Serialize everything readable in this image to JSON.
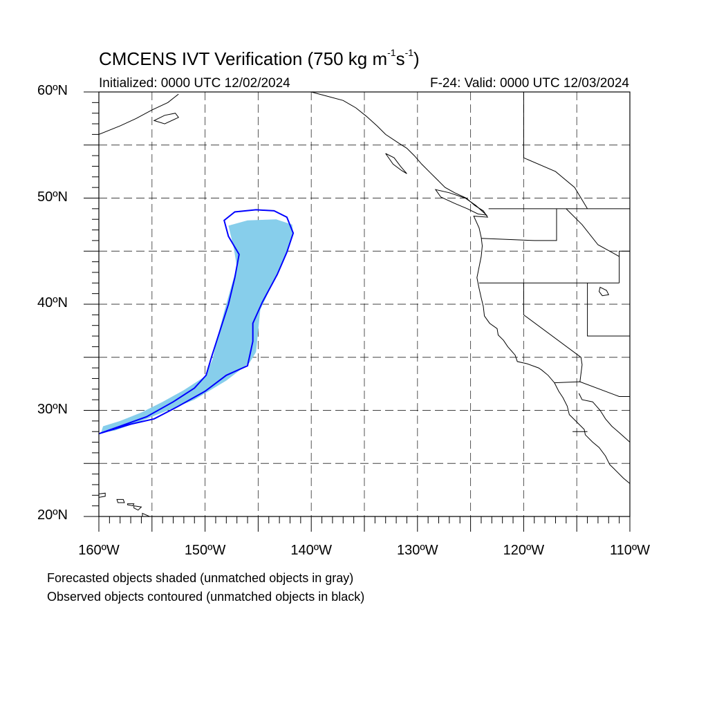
{
  "title": {
    "main": "CMCENS IVT Verification (750 kg m",
    "sup1": "-1",
    "mid": "s",
    "sup2": "-1",
    "end": ")"
  },
  "initialized": "Initialized: 0000 UTC 12/02/2024",
  "valid": "F-24: Valid: 0000 UTC 12/03/2024",
  "map": {
    "lon_range": [
      -160,
      -110
    ],
    "lat_range": [
      20,
      60
    ],
    "grid_spacing_deg": 5,
    "grid": "dashed",
    "lat_labels": [
      {
        "lat": 60,
        "text": "60ºN"
      },
      {
        "lat": 50,
        "text": "50ºN"
      },
      {
        "lat": 40,
        "text": "40ºN"
      },
      {
        "lat": 30,
        "text": "30ºN"
      },
      {
        "lat": 20,
        "text": "20ºN"
      }
    ],
    "lon_labels": [
      {
        "lon": -160,
        "text": "160ºW"
      },
      {
        "lon": -150,
        "text": "150ºW"
      },
      {
        "lon": -140,
        "text": "140ºW"
      },
      {
        "lon": -130,
        "text": "130ºW"
      },
      {
        "lon": -120,
        "text": "120ºW"
      },
      {
        "lon": -110,
        "text": "110ºW"
      }
    ],
    "forecast_object": {
      "fill": "#87ceeb",
      "outline_lonlat": [
        [
          -159.6,
          28.5
        ],
        [
          -158.0,
          29.0
        ],
        [
          -156.0,
          29.8
        ],
        [
          -154.0,
          30.8
        ],
        [
          -152.0,
          31.9
        ],
        [
          -150.0,
          33.2
        ],
        [
          -149.3,
          34.8
        ],
        [
          -148.8,
          37.0
        ],
        [
          -148.2,
          39.3
        ],
        [
          -147.5,
          41.8
        ],
        [
          -147.0,
          43.5
        ],
        [
          -147.3,
          45.3
        ],
        [
          -147.8,
          47.4
        ],
        [
          -146.0,
          47.9
        ],
        [
          -143.3,
          48.0
        ],
        [
          -141.8,
          47.5
        ],
        [
          -141.7,
          46.5
        ],
        [
          -142.7,
          44.0
        ],
        [
          -143.8,
          41.6
        ],
        [
          -144.8,
          39.5
        ],
        [
          -145.0,
          37.5
        ],
        [
          -145.2,
          35.5
        ],
        [
          -145.8,
          34.5
        ],
        [
          -148.0,
          32.8
        ],
        [
          -151.0,
          31.0
        ],
        [
          -153.5,
          30.0
        ],
        [
          -156.0,
          29.0
        ],
        [
          -158.5,
          28.1
        ],
        [
          -159.8,
          27.9
        ]
      ]
    },
    "observed_object": {
      "stroke": "#0000ff",
      "outline_lonlat": [
        [
          -160.0,
          27.8
        ],
        [
          -158.0,
          28.5
        ],
        [
          -155.5,
          29.4
        ],
        [
          -153.0,
          30.8
        ],
        [
          -151.0,
          32.1
        ],
        [
          -149.9,
          33.3
        ],
        [
          -149.4,
          35.0
        ],
        [
          -148.6,
          37.5
        ],
        [
          -147.8,
          40.0
        ],
        [
          -147.2,
          42.5
        ],
        [
          -146.8,
          44.7
        ],
        [
          -147.8,
          46.4
        ],
        [
          -148.2,
          47.9
        ],
        [
          -147.2,
          48.7
        ],
        [
          -145.2,
          48.9
        ],
        [
          -143.5,
          48.8
        ],
        [
          -142.3,
          48.2
        ],
        [
          -141.7,
          46.7
        ],
        [
          -142.3,
          44.9
        ],
        [
          -143.2,
          42.8
        ],
        [
          -144.6,
          40.2
        ],
        [
          -145.5,
          38.2
        ],
        [
          -145.5,
          36.5
        ],
        [
          -146.0,
          34.2
        ],
        [
          -148.0,
          33.3
        ],
        [
          -150.0,
          31.8
        ],
        [
          -152.5,
          30.4
        ],
        [
          -154.8,
          29.2
        ],
        [
          -157.0,
          28.7
        ],
        [
          -159.0,
          28.1
        ],
        [
          -160.0,
          27.8
        ]
      ]
    },
    "coastline_lonlat": [
      [
        -140.0,
        60.0
      ],
      [
        -138.5,
        59.6
      ],
      [
        -137.0,
        59.2
      ],
      [
        -135.8,
        58.5
      ],
      [
        -134.8,
        57.7
      ],
      [
        -133.8,
        56.8
      ],
      [
        -133.0,
        56.0
      ],
      [
        -131.8,
        55.2
      ],
      [
        -131.0,
        54.7
      ],
      [
        -130.3,
        54.0
      ],
      [
        -129.6,
        53.2
      ],
      [
        -128.8,
        52.4
      ],
      [
        -128.0,
        51.6
      ],
      [
        -127.4,
        51.0
      ],
      [
        -126.5,
        50.5
      ],
      [
        -125.4,
        50.0
      ],
      [
        -124.6,
        49.3
      ],
      [
        -123.8,
        48.8
      ],
      [
        -123.4,
        48.2
      ],
      [
        -124.7,
        48.3
      ],
      [
        -124.2,
        47.2
      ],
      [
        -124.0,
        46.3
      ],
      [
        -123.9,
        45.5
      ],
      [
        -124.0,
        44.5
      ],
      [
        -124.2,
        43.5
      ],
      [
        -124.4,
        42.5
      ],
      [
        -124.2,
        41.5
      ],
      [
        -124.0,
        40.6
      ],
      [
        -123.8,
        39.8
      ],
      [
        -123.7,
        38.9
      ],
      [
        -123.2,
        38.2
      ],
      [
        -122.5,
        37.7
      ],
      [
        -122.4,
        37.1
      ],
      [
        -121.9,
        36.6
      ],
      [
        -121.5,
        36.0
      ],
      [
        -120.8,
        35.2
      ],
      [
        -120.6,
        34.6
      ],
      [
        -119.7,
        34.4
      ],
      [
        -118.6,
        34.0
      ],
      [
        -118.3,
        33.8
      ],
      [
        -117.7,
        33.3
      ],
      [
        -117.1,
        32.6
      ],
      [
        -116.7,
        31.8
      ],
      [
        -116.3,
        31.2
      ],
      [
        -115.9,
        30.4
      ],
      [
        -115.7,
        29.6
      ],
      [
        -114.9,
        28.8
      ],
      [
        -114.3,
        28.2
      ],
      [
        -114.2,
        27.7
      ],
      [
        -113.5,
        27.0
      ],
      [
        -112.9,
        26.5
      ],
      [
        -112.3,
        25.7
      ],
      [
        -111.9,
        24.9
      ],
      [
        -111.5,
        24.5
      ],
      [
        -110.6,
        23.6
      ],
      [
        -110.0,
        23.1
      ]
    ],
    "mainland_gulf_coast_lonlat": [
      [
        -114.8,
        31.6
      ],
      [
        -114.5,
        31.0
      ],
      [
        -113.5,
        30.8
      ],
      [
        -112.8,
        30.0
      ],
      [
        -112.3,
        29.2
      ],
      [
        -111.7,
        28.5
      ],
      [
        -111.0,
        27.9
      ],
      [
        -110.0,
        27.0
      ]
    ],
    "vancouver_island_lonlat": [
      [
        -128.3,
        50.8
      ],
      [
        -127.0,
        50.5
      ],
      [
        -125.5,
        50.0
      ],
      [
        -124.5,
        49.3
      ],
      [
        -123.5,
        48.4
      ],
      [
        -124.3,
        48.5
      ],
      [
        -125.3,
        49.0
      ],
      [
        -126.5,
        49.5
      ],
      [
        -127.8,
        50.1
      ],
      [
        -128.3,
        50.8
      ]
    ],
    "haida_gwaii_lonlat": [
      [
        -133.0,
        54.2
      ],
      [
        -132.2,
        53.8
      ],
      [
        -131.6,
        53.0
      ],
      [
        -131.0,
        52.3
      ],
      [
        -131.5,
        52.6
      ],
      [
        -132.3,
        53.2
      ],
      [
        -133.0,
        54.2
      ]
    ],
    "alaska_peninsula_lonlat": [
      [
        -160.0,
        56.0
      ],
      [
        -158.0,
        56.8
      ],
      [
        -156.5,
        57.5
      ],
      [
        -155.0,
        58.3
      ],
      [
        -153.5,
        59.0
      ],
      [
        -152.5,
        59.8
      ]
    ],
    "kodiak_lonlat": [
      [
        -154.8,
        57.3
      ],
      [
        -153.8,
        57.0
      ],
      [
        -152.5,
        57.6
      ],
      [
        -152.8,
        58.0
      ],
      [
        -153.8,
        57.8
      ],
      [
        -154.8,
        57.3
      ]
    ],
    "hawaii_islands_lonlat": [
      [
        [
          -160.2,
          22.1
        ],
        [
          -159.4,
          22.2
        ],
        [
          -159.4,
          21.9
        ],
        [
          -160.0,
          21.8
        ],
        [
          -160.2,
          22.1
        ]
      ],
      [
        [
          -158.3,
          21.6
        ],
        [
          -157.7,
          21.6
        ],
        [
          -157.6,
          21.3
        ],
        [
          -158.2,
          21.3
        ],
        [
          -158.3,
          21.6
        ]
      ],
      [
        [
          -157.3,
          21.2
        ],
        [
          -156.7,
          21.2
        ],
        [
          -156.8,
          21.0
        ],
        [
          -157.3,
          21.1
        ]
      ],
      [
        [
          -156.7,
          21.0
        ],
        [
          -156.0,
          20.9
        ],
        [
          -156.3,
          20.6
        ],
        [
          -156.7,
          20.8
        ],
        [
          -156.7,
          21.0
        ]
      ],
      [
        [
          -155.9,
          20.3
        ],
        [
          -155.0,
          19.9
        ],
        [
          -155.1,
          19.3
        ],
        [
          -155.9,
          19.0
        ],
        [
          -155.9,
          20.3
        ]
      ]
    ],
    "borders_lonlat": [
      [
        [
          -123.3,
          49.0
        ],
        [
          -110.0,
          49.0
        ]
      ],
      [
        [
          -124.2,
          42.0
        ],
        [
          -117.0,
          42.0
        ],
        [
          -111.0,
          42.0
        ]
      ],
      [
        [
          -120.0,
          42.0
        ],
        [
          -120.0,
          39.0
        ],
        [
          -114.6,
          35.0
        ],
        [
          -114.5,
          34.3
        ],
        [
          -114.7,
          32.7
        ]
      ],
      [
        [
          -124.0,
          46.2
        ],
        [
          -119.0,
          46.0
        ],
        [
          -116.9,
          46.0
        ],
        [
          -116.9,
          49.0
        ]
      ],
      [
        [
          -117.1,
          32.6
        ],
        [
          -114.7,
          32.7
        ],
        [
          -111.0,
          31.3
        ],
        [
          -108.2,
          31.3
        ]
      ],
      [
        [
          -114.0,
          42.0
        ],
        [
          -114.0,
          37.0
        ],
        [
          -110.0,
          37.0
        ]
      ],
      [
        [
          -111.0,
          42.0
        ],
        [
          -111.0,
          45.0
        ],
        [
          -110.0,
          45.0
        ]
      ],
      [
        [
          -120.0,
          60.0
        ],
        [
          -120.0,
          53.8
        ],
        [
          -117.0,
          52.5
        ],
        [
          -115.2,
          51.0
        ],
        [
          -114.0,
          49.0
        ]
      ],
      [
        [
          -116.0,
          49.0
        ],
        [
          -114.5,
          47.5
        ],
        [
          -113.0,
          45.6
        ],
        [
          -111.0,
          44.5
        ]
      ],
      [
        [
          -115.4,
          28.0
        ],
        [
          -114.0,
          28.0
        ]
      ]
    ],
    "great_salt_lake_lonlat": [
      [
        -112.8,
        41.6
      ],
      [
        -112.2,
        41.3
      ],
      [
        -112.0,
        40.9
      ],
      [
        -112.6,
        40.8
      ],
      [
        -112.9,
        41.2
      ],
      [
        -112.8,
        41.6
      ]
    ]
  },
  "notes": [
    "Forecasted objects shaded (unmatched objects in gray)",
    "Observed objects contoured (unmatched objects in black)"
  ]
}
